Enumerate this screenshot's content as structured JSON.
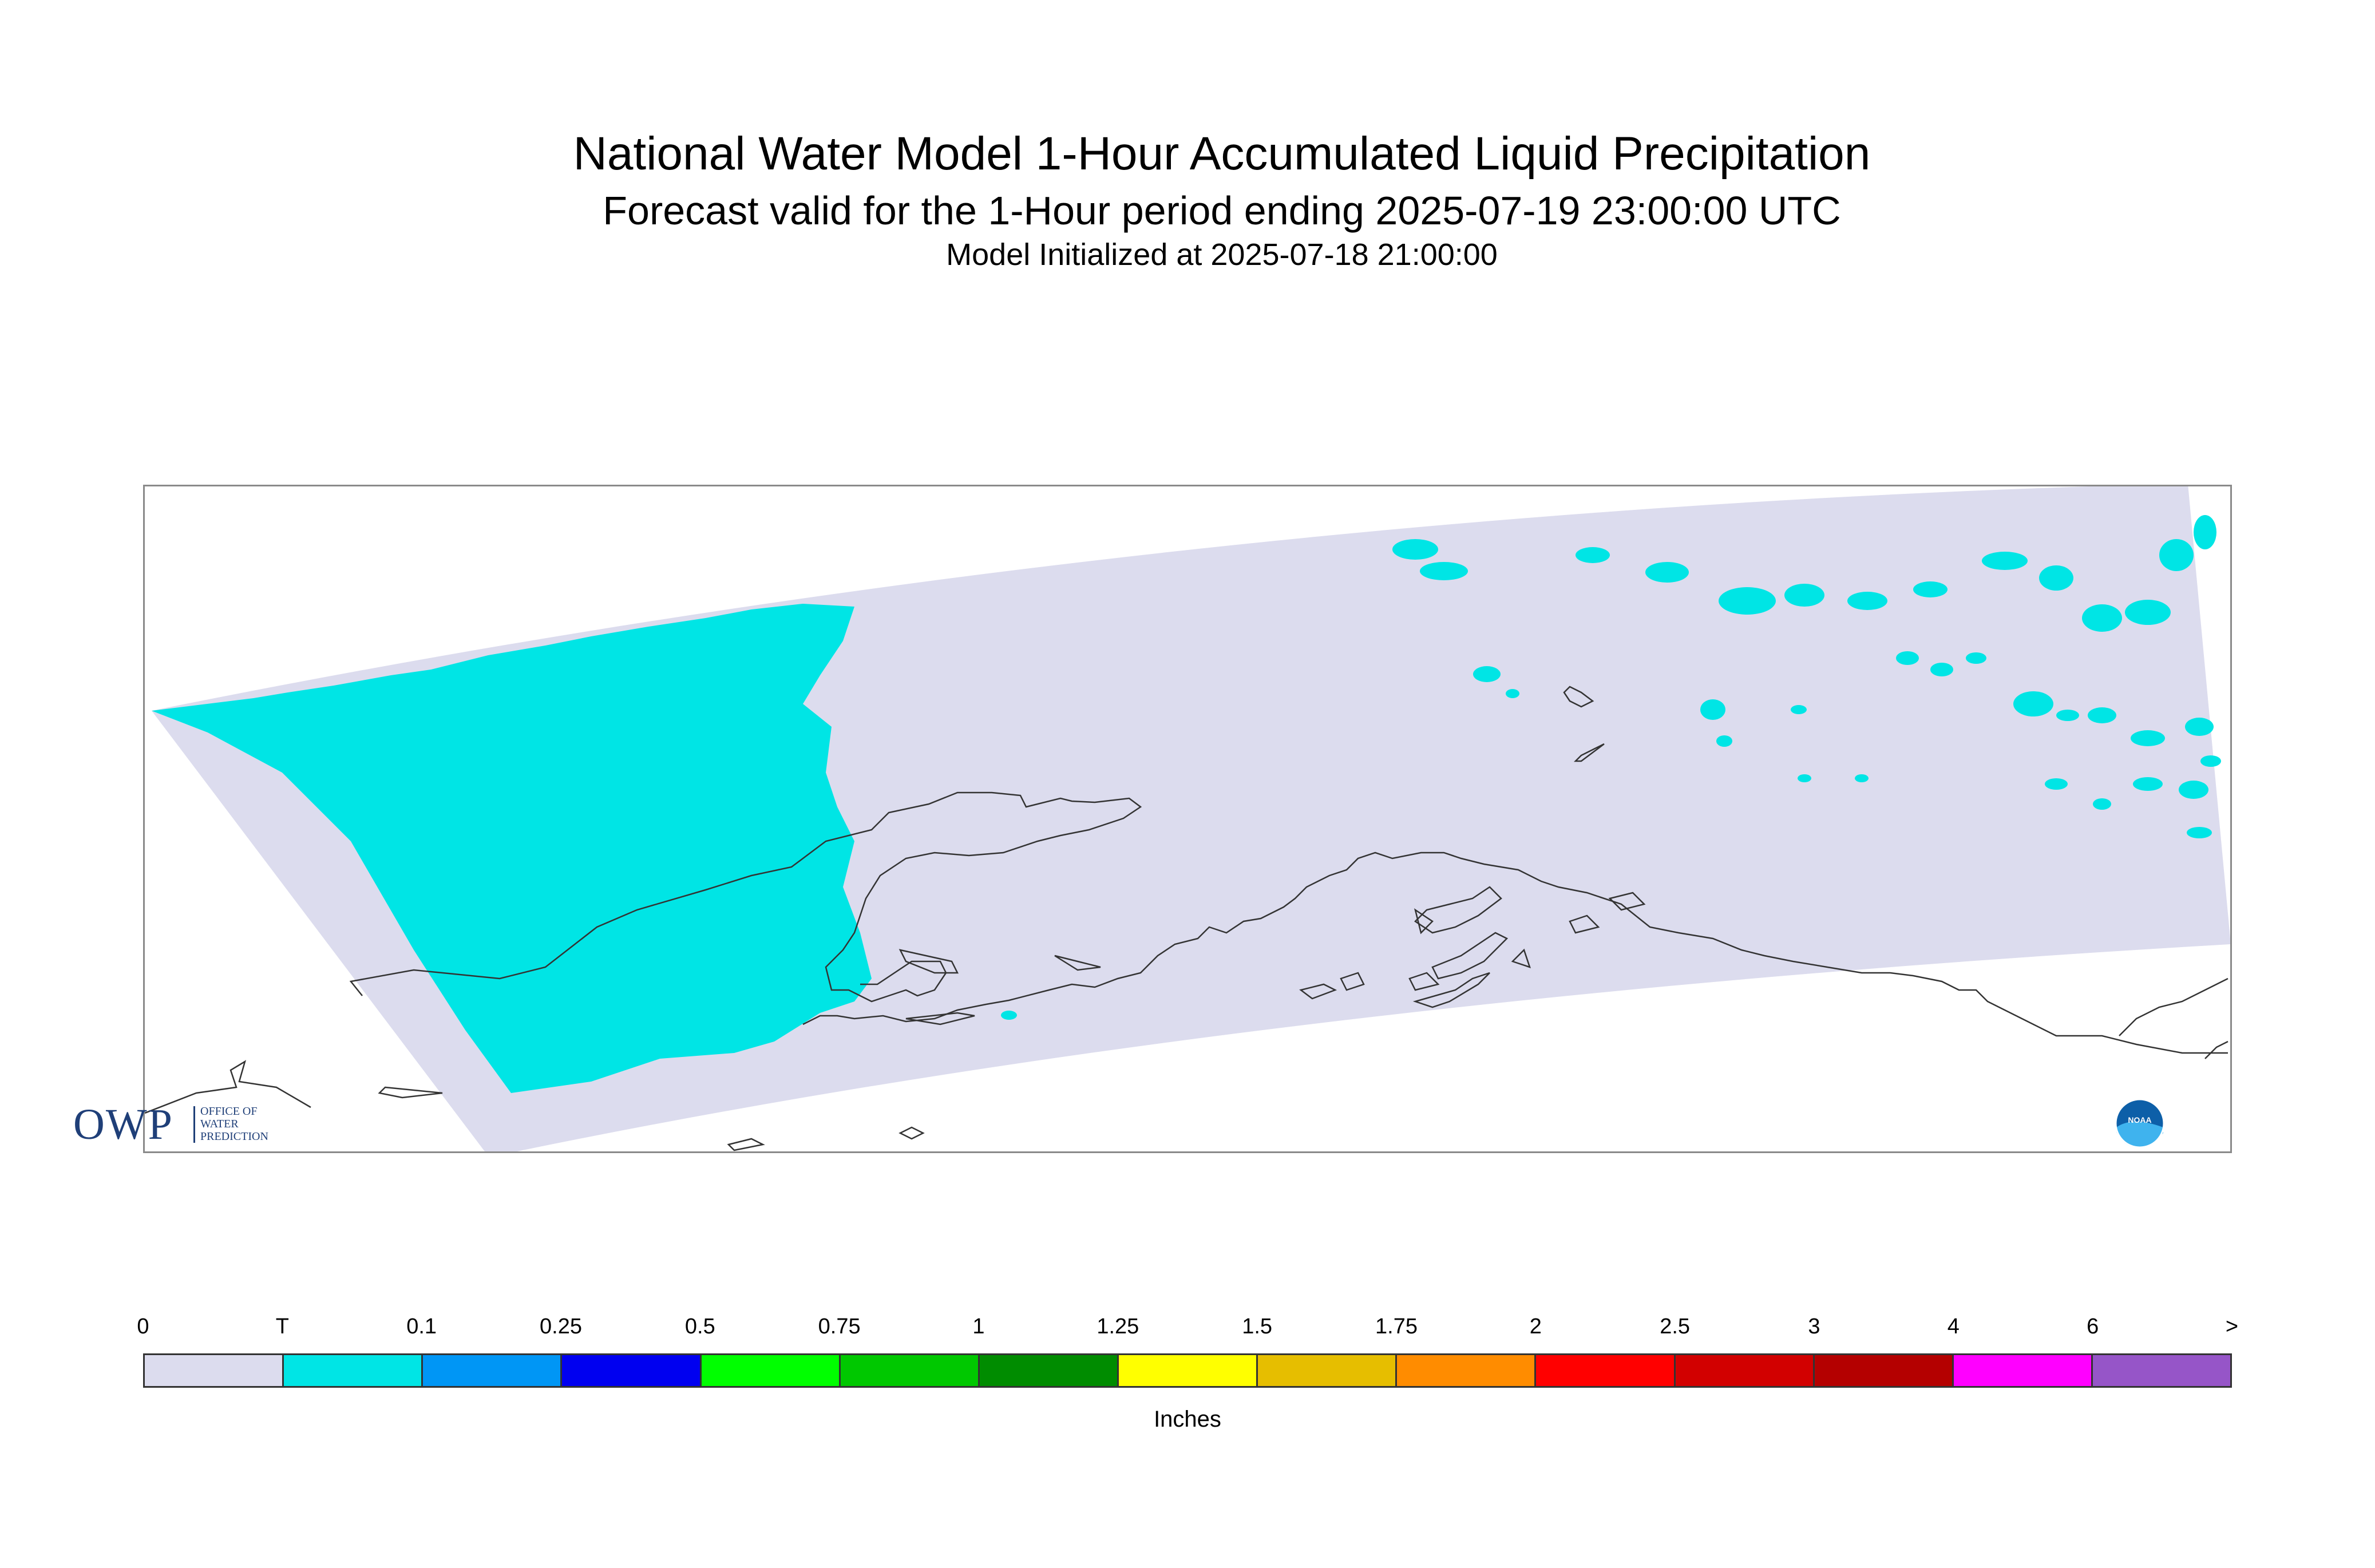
{
  "title": {
    "line1": "National Water Model 1-Hour Accumulated Liquid Precipitation",
    "line2": "Forecast valid for the 1-Hour period ending 2025-07-19 23:00:00 UTC",
    "line3": "Model Initialized at 2025-07-18 21:00:00"
  },
  "map": {
    "domain_color": "#dcdcee",
    "trace_color": "#00e5e5",
    "coastline_color": "#333333"
  },
  "logos": {
    "owp": {
      "main": "OWP",
      "line1": "OFFICE OF",
      "line2": "WATER",
      "line3": "PREDICTION"
    },
    "noaa": {
      "text": "NOAA"
    }
  },
  "legend": {
    "labels": [
      "0",
      "T",
      "0.1",
      "0.25",
      "0.5",
      "0.75",
      "1",
      "1.25",
      "1.5",
      "1.75",
      "2",
      "2.5",
      "3",
      "4",
      "6",
      ">"
    ],
    "colors": [
      "#dcdcee",
      "#00e5e5",
      "#0096f5",
      "#0000f0",
      "#00ff00",
      "#00c800",
      "#008c00",
      "#ffff00",
      "#e6be00",
      "#ff8c00",
      "#ff0000",
      "#d20000",
      "#b40000",
      "#ff00ff",
      "#9655c8"
    ],
    "units": "Inches"
  }
}
